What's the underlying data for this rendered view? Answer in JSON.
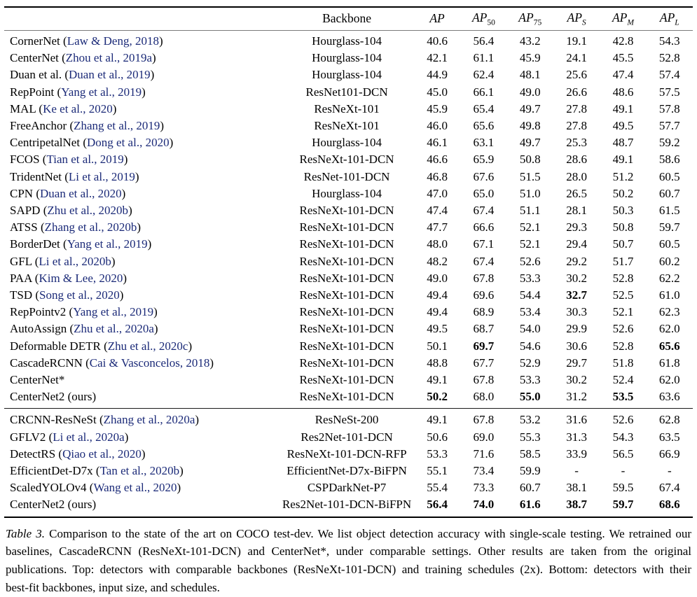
{
  "colors": {
    "citation": "#1b2a78",
    "rule_heavy": "#000000",
    "rule_header": "#7a7a7a",
    "rule_section": "#1a1a1a"
  },
  "table": {
    "header": {
      "method": "",
      "backbone": "Backbone",
      "metrics": [
        {
          "base": "AP",
          "sub": ""
        },
        {
          "base": "AP",
          "sub": "50"
        },
        {
          "base": "AP",
          "sub": "75"
        },
        {
          "base": "AP",
          "sub": "S"
        },
        {
          "base": "AP",
          "sub": "M"
        },
        {
          "base": "AP",
          "sub": "L"
        }
      ]
    },
    "top_rows": [
      {
        "method": "CornerNet",
        "cite": "Law & Deng, 2018",
        "backbone": "Hourglass-104",
        "values": [
          "40.6",
          "56.4",
          "43.2",
          "19.1",
          "42.8",
          "54.3"
        ],
        "bold": []
      },
      {
        "method": "CenterNet",
        "cite": "Zhou et al., 2019a",
        "backbone": "Hourglass-104",
        "values": [
          "42.1",
          "61.1",
          "45.9",
          "24.1",
          "45.5",
          "52.8"
        ],
        "bold": []
      },
      {
        "method": "Duan et al.",
        "cite": "Duan et al., 2019",
        "backbone": "Hourglass-104",
        "values": [
          "44.9",
          "62.4",
          "48.1",
          "25.6",
          "47.4",
          "57.4"
        ],
        "bold": []
      },
      {
        "method": "RepPoint",
        "cite": "Yang et al., 2019",
        "backbone": "ResNet101-DCN",
        "values": [
          "45.0",
          "66.1",
          "49.0",
          "26.6",
          "48.6",
          "57.5"
        ],
        "bold": []
      },
      {
        "method": "MAL",
        "cite": "Ke et al., 2020",
        "backbone": "ResNeXt-101",
        "values": [
          "45.9",
          "65.4",
          "49.7",
          "27.8",
          "49.1",
          "57.8"
        ],
        "bold": []
      },
      {
        "method": "FreeAnchor",
        "cite": "Zhang et al., 2019",
        "backbone": "ResNeXt-101",
        "values": [
          "46.0",
          "65.6",
          "49.8",
          "27.8",
          "49.5",
          "57.7"
        ],
        "bold": []
      },
      {
        "method": "CentripetalNet",
        "cite": "Dong et al., 2020",
        "backbone": "Hourglass-104",
        "values": [
          "46.1",
          "63.1",
          "49.7",
          "25.3",
          "48.7",
          "59.2"
        ],
        "bold": []
      },
      {
        "method": "FCOS",
        "cite": "Tian et al., 2019",
        "backbone": "ResNeXt-101-DCN",
        "values": [
          "46.6",
          "65.9",
          "50.8",
          "28.6",
          "49.1",
          "58.6"
        ],
        "bold": []
      },
      {
        "method": "TridentNet",
        "cite": "Li et al., 2019",
        "backbone": "ResNet-101-DCN",
        "values": [
          "46.8",
          "67.6",
          "51.5",
          "28.0",
          "51.2",
          "60.5"
        ],
        "bold": []
      },
      {
        "method": "CPN",
        "cite": "Duan et al., 2020",
        "backbone": "Hourglass-104",
        "values": [
          "47.0",
          "65.0",
          "51.0",
          "26.5",
          "50.2",
          "60.7"
        ],
        "bold": []
      },
      {
        "method": "SAPD",
        "cite": "Zhu et al., 2020b",
        "backbone": "ResNeXt-101-DCN",
        "values": [
          "47.4",
          "67.4",
          "51.1",
          "28.1",
          "50.3",
          "61.5"
        ],
        "bold": []
      },
      {
        "method": "ATSS",
        "cite": "Zhang et al., 2020b",
        "backbone": "ResNeXt-101-DCN",
        "values": [
          "47.7",
          "66.6",
          "52.1",
          "29.3",
          "50.8",
          "59.7"
        ],
        "bold": []
      },
      {
        "method": "BorderDet",
        "cite": "Yang et al., 2019",
        "backbone": "ResNeXt-101-DCN",
        "values": [
          "48.0",
          "67.1",
          "52.1",
          "29.4",
          "50.7",
          "60.5"
        ],
        "bold": []
      },
      {
        "method": "GFL",
        "cite": "Li et al., 2020b",
        "backbone": "ResNeXt-101-DCN",
        "values": [
          "48.2",
          "67.4",
          "52.6",
          "29.2",
          "51.7",
          "60.2"
        ],
        "bold": []
      },
      {
        "method": "PAA",
        "cite": "Kim & Lee, 2020",
        "backbone": "ResNeXt-101-DCN",
        "values": [
          "49.0",
          "67.8",
          "53.3",
          "30.2",
          "52.8",
          "62.2"
        ],
        "bold": []
      },
      {
        "method": "TSD",
        "cite": "Song et al., 2020",
        "backbone": "ResNeXt-101-DCN",
        "values": [
          "49.4",
          "69.6",
          "54.4",
          "32.7",
          "52.5",
          "61.0"
        ],
        "bold": [
          3
        ]
      },
      {
        "method": "RepPointv2",
        "cite": "Yang et al., 2019",
        "backbone": "ResNeXt-101-DCN",
        "values": [
          "49.4",
          "68.9",
          "53.4",
          "30.3",
          "52.1",
          "62.3"
        ],
        "bold": []
      },
      {
        "method": "AutoAssign",
        "cite": "Zhu et al., 2020a",
        "backbone": "ResNeXt-101-DCN",
        "values": [
          "49.5",
          "68.7",
          "54.0",
          "29.9",
          "52.6",
          "62.0"
        ],
        "bold": []
      },
      {
        "method": "Deformable DETR",
        "cite": "Zhu et al., 2020c",
        "backbone": "ResNeXt-101-DCN",
        "values": [
          "50.1",
          "69.7",
          "54.6",
          "30.6",
          "52.8",
          "65.6"
        ],
        "bold": [
          1,
          5
        ]
      },
      {
        "method": "CascadeRCNN",
        "cite": "Cai & Vasconcelos, 2018",
        "backbone": "ResNeXt-101-DCN",
        "values": [
          "48.8",
          "67.7",
          "52.9",
          "29.7",
          "51.8",
          "61.8"
        ],
        "bold": []
      },
      {
        "method": "CenterNet*",
        "cite": null,
        "backbone": "ResNeXt-101-DCN",
        "values": [
          "49.1",
          "67.8",
          "53.3",
          "30.2",
          "52.4",
          "62.0"
        ],
        "bold": []
      },
      {
        "method": "CenterNet2 (ours)",
        "cite": null,
        "backbone": "ResNeXt-101-DCN",
        "values": [
          "50.2",
          "68.0",
          "55.0",
          "31.2",
          "53.5",
          "63.6"
        ],
        "bold": [
          0,
          2,
          4
        ]
      }
    ],
    "bottom_rows": [
      {
        "method": "CRCNN-ResNeSt",
        "cite": "Zhang et al., 2020a",
        "backbone": "ResNeSt-200",
        "values": [
          "49.1",
          "67.8",
          "53.2",
          "31.6",
          "52.6",
          "62.8"
        ],
        "bold": []
      },
      {
        "method": "GFLV2",
        "cite": "Li et al., 2020a",
        "backbone": "Res2Net-101-DCN",
        "values": [
          "50.6",
          "69.0",
          "55.3",
          "31.3",
          "54.3",
          "63.5"
        ],
        "bold": []
      },
      {
        "method": "DetectRS",
        "cite": "Qiao et al., 2020",
        "backbone": "ResNeXt-101-DCN-RFP",
        "values": [
          "53.3",
          "71.6",
          "58.5",
          "33.9",
          "56.5",
          "66.9"
        ],
        "bold": []
      },
      {
        "method": "EfficientDet-D7x",
        "cite": "Tan et al., 2020b",
        "backbone": "EfficientNet-D7x-BiFPN",
        "values": [
          "55.1",
          "73.4",
          "59.9",
          "-",
          "-",
          "-"
        ],
        "bold": []
      },
      {
        "method": "ScaledYOLOv4",
        "cite": "Wang et al., 2020",
        "backbone": "CSPDarkNet-P7",
        "values": [
          "55.4",
          "73.3",
          "60.7",
          "38.1",
          "59.5",
          "67.4"
        ],
        "bold": []
      },
      {
        "method": "CenterNet2 (ours)",
        "cite": null,
        "backbone": "Res2Net-101-DCN-BiFPN",
        "values": [
          "56.4",
          "74.0",
          "61.6",
          "38.7",
          "59.7",
          "68.6"
        ],
        "bold": [
          0,
          1,
          2,
          3,
          4,
          5
        ]
      }
    ]
  },
  "caption": {
    "label": "Table 3.",
    "lines": [
      "Comparison to the state of the art on COCO test-dev. We list object detection accuracy with single-scale testing. We retrained our",
      "baselines, CascadeRCNN (ResNeXt-101-DCN) and CenterNet*, under comparable settings. Other results are taken from the original",
      "publications. Top: detectors with comparable backbones (ResNeXt-101-DCN) and training schedules (2x). Bottom: detectors with their",
      "best-fit backbones, input size, and schedules."
    ]
  }
}
